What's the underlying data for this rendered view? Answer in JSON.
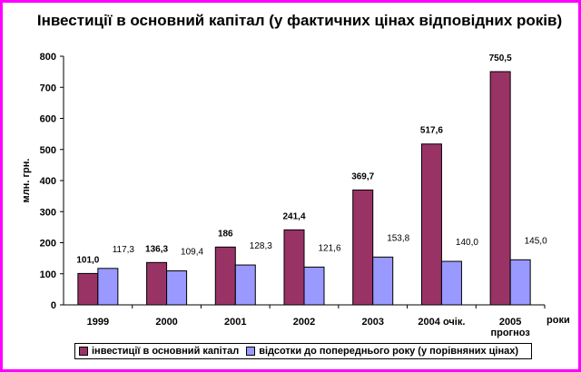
{
  "chart_data": {
    "type": "bar",
    "title": "Інвестиції в основний капітал (у фактичних цінах відповідних років)",
    "ylabel": "млн. грн.",
    "xlabel": "роки",
    "ylim": [
      0,
      800
    ],
    "yticks": [
      "0",
      "100",
      "200",
      "300",
      "400",
      "500",
      "600",
      "700",
      "800"
    ],
    "categories": [
      "1999",
      "2000",
      "2001",
      "2002",
      "2003",
      "2004 очік.",
      "2005 прогноз"
    ],
    "category_labels": [
      [
        "1999"
      ],
      [
        "2000"
      ],
      [
        "2001"
      ],
      [
        "2002"
      ],
      [
        "2003"
      ],
      [
        "2004 очік."
      ],
      [
        "2005",
        "прогноз"
      ]
    ],
    "series": [
      {
        "name": "інвестиції в основний капітал",
        "color": "#993366",
        "values": [
          101.0,
          136.3,
          186,
          241.4,
          369.7,
          517.6,
          750.5
        ],
        "labels": [
          "101,0",
          "136,3",
          "186",
          "241,4",
          "369,7",
          "517,6",
          "750,5"
        ]
      },
      {
        "name": "відсотки до попереднього року (у порівняних цінах)",
        "color": "#9999ff",
        "values": [
          117.3,
          109.4,
          128.3,
          121.6,
          153.8,
          140.0,
          145.0
        ],
        "labels": [
          "117,3",
          "109,4",
          "128,3",
          "121,6",
          "153,8",
          "140,0",
          "145,0"
        ]
      }
    ],
    "grid": false,
    "legend": "bottom"
  }
}
